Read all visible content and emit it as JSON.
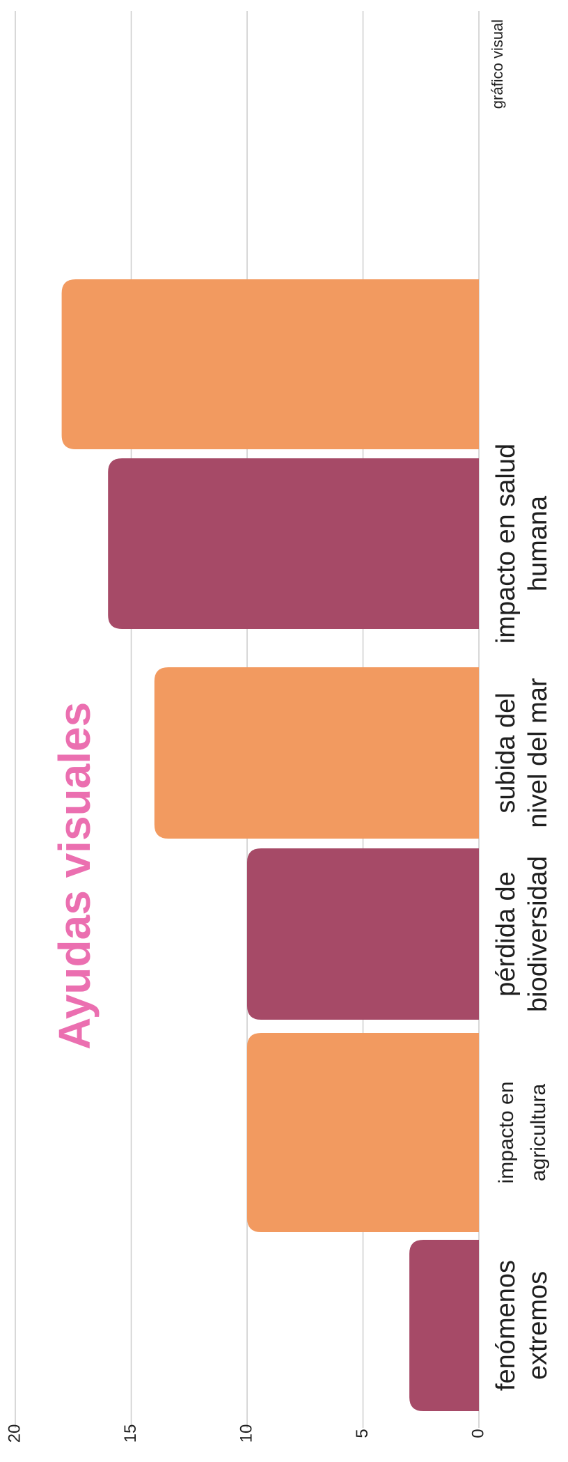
{
  "chart_data": {
    "type": "bar",
    "title": "Ayudas visuales",
    "caption": "gráfico visual",
    "categories": [
      [
        "fenómenos",
        "extremos"
      ],
      [
        "impacto en",
        "agricultura"
      ],
      [
        "pérdida de",
        "biodiversidad"
      ],
      [
        "subida del",
        "nivel del mar"
      ],
      [
        "impacto en salud",
        "humana"
      ],
      [
        ""
      ]
    ],
    "values": [
      3,
      10,
      10,
      14,
      16,
      18
    ],
    "ylim": [
      0,
      20
    ],
    "yticks": [
      0,
      5,
      10,
      15,
      20
    ],
    "grid": true,
    "orientation": "rotated-vertical",
    "colors": {
      "plum": "#a64a67",
      "orange": "#f29a60",
      "title": "#eb6fb0",
      "grid": "#cccccc",
      "text": "#1f1f1f"
    },
    "bar_colors": [
      "plum",
      "orange",
      "plum",
      "orange",
      "plum",
      "orange"
    ]
  }
}
